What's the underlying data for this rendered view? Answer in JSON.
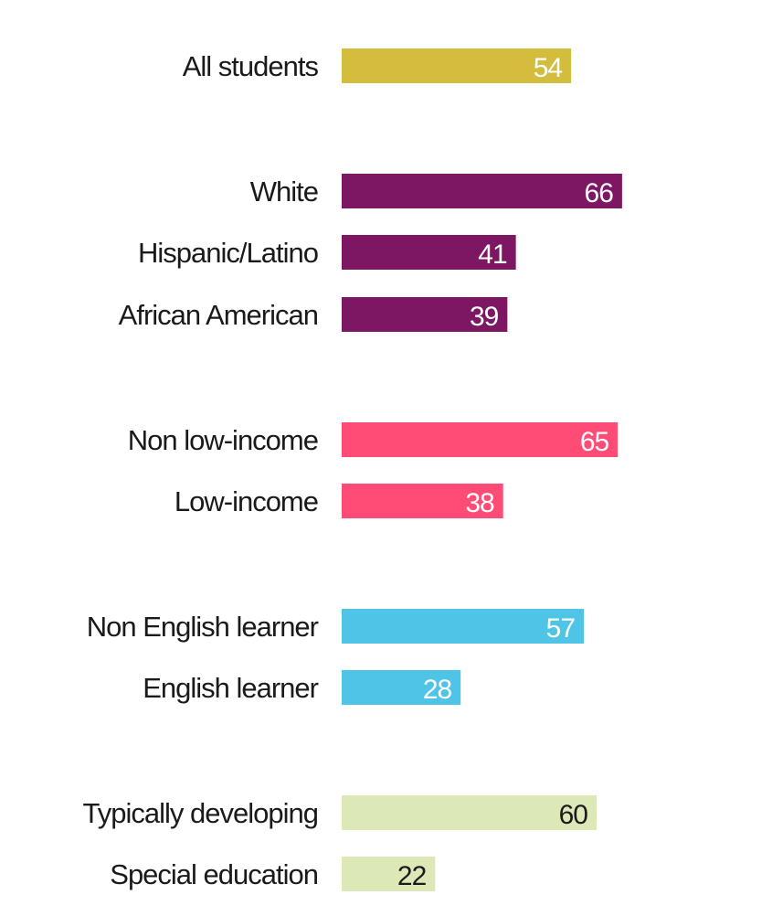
{
  "chart_data": {
    "type": "bar",
    "orientation": "horizontal",
    "categories": [
      "All students",
      "White",
      "Hispanic/Latino",
      "African American",
      "Non low-income",
      "Low-income",
      "Non English learner",
      "English learner",
      "Typically developing",
      "Special education"
    ],
    "values": [
      54,
      66,
      41,
      39,
      65,
      38,
      57,
      28,
      60,
      22
    ],
    "groups": [
      {
        "color": "#D4BD3D",
        "label_color": "#ffffff",
        "members": [
          0
        ]
      },
      {
        "color": "#7D1663",
        "label_color": "#ffffff",
        "members": [
          1,
          2,
          3
        ]
      },
      {
        "color": "#FF4C77",
        "label_color": "#ffffff",
        "members": [
          4,
          5
        ]
      },
      {
        "color": "#4FC4E6",
        "label_color": "#ffffff",
        "members": [
          6,
          7
        ]
      },
      {
        "color": "#DDE8B7",
        "label_color": "#1a1a1a",
        "members": [
          8,
          9
        ]
      }
    ],
    "data_labels": [
      "54",
      "66",
      "41",
      "39",
      "65",
      "38",
      "57",
      "28",
      "60",
      "22"
    ],
    "title": "",
    "xlabel": "",
    "ylabel": "",
    "xlim": [
      0,
      100
    ],
    "grid": false,
    "legend": "none"
  }
}
